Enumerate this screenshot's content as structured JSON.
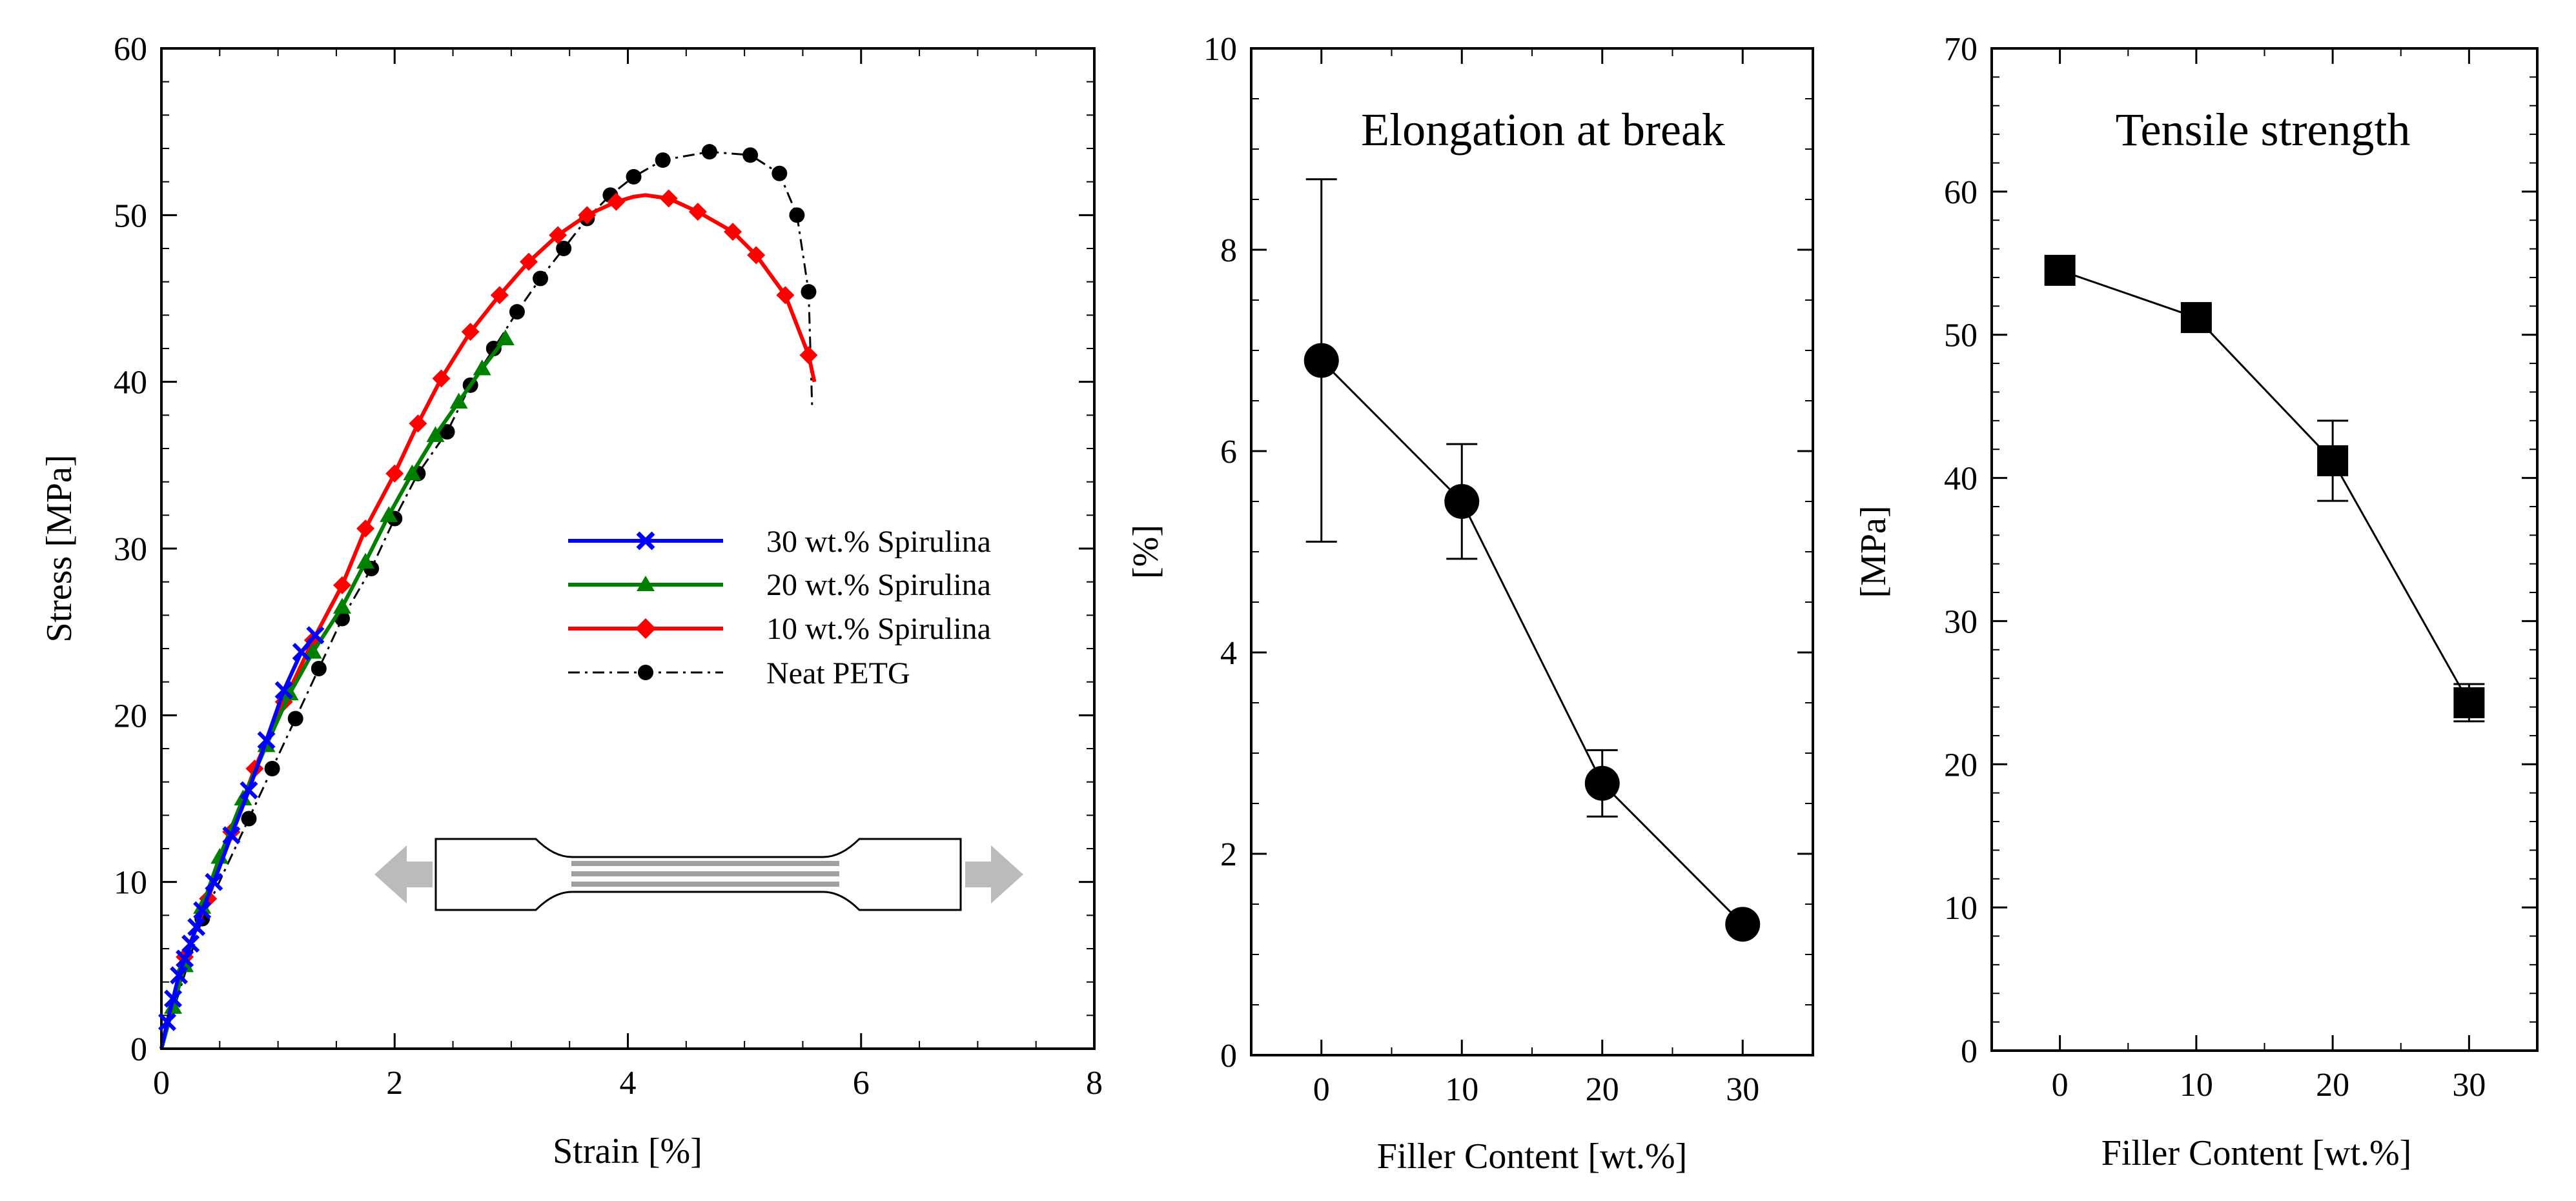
{
  "chart_data": [
    {
      "type": "line",
      "xlabel": "Strain [%]",
      "ylabel": "Stress [MPa]",
      "xlim": [
        0,
        8
      ],
      "ylim": [
        0,
        60
      ],
      "xticks": [
        0,
        2,
        4,
        6,
        8
      ],
      "yticks": [
        0,
        10,
        20,
        30,
        40,
        50,
        60
      ],
      "grid": false,
      "legend_position": "center-right",
      "series": [
        {
          "name": "30 wt.% Spirulina",
          "color": "#0000ff",
          "marker": "x",
          "line": "solid",
          "x": [
            0,
            0.05,
            0.1,
            0.15,
            0.2,
            0.25,
            0.3,
            0.35,
            0.45,
            0.6,
            0.75,
            0.9,
            1.05,
            1.2,
            1.32
          ],
          "y": [
            0,
            1.6,
            3.0,
            4.4,
            5.4,
            6.3,
            7.3,
            8.3,
            10.0,
            12.8,
            15.5,
            18.5,
            21.5,
            23.8,
            24.8
          ]
        },
        {
          "name": "20 wt.% Spirulina",
          "color": "#008000",
          "marker": "triangle",
          "line": "solid",
          "x": [
            0,
            0.1,
            0.2,
            0.35,
            0.5,
            0.7,
            0.9,
            1.1,
            1.3,
            1.55,
            1.75,
            1.95,
            2.15,
            2.35,
            2.55,
            2.75,
            2.95
          ],
          "y": [
            0,
            2.5,
            5.0,
            8.5,
            11.5,
            15.0,
            18.2,
            21.3,
            23.8,
            26.5,
            29.2,
            32.0,
            34.5,
            36.8,
            38.8,
            40.8,
            42.6
          ]
        },
        {
          "name": "10 wt.% Spirulina",
          "color": "#ff0000",
          "marker": "diamond",
          "line": "solid",
          "x": [
            0,
            0.2,
            0.4,
            0.6,
            0.8,
            1.05,
            1.3,
            1.55,
            1.75,
            2.0,
            2.2,
            2.4,
            2.65,
            2.9,
            3.15,
            3.4,
            3.65,
            3.9,
            4.05,
            4.15,
            4.35,
            4.6,
            4.9,
            5.1,
            5.35,
            5.55,
            5.6
          ],
          "y": [
            0,
            5.5,
            9.0,
            13.0,
            16.8,
            20.8,
            24.5,
            27.8,
            31.2,
            34.5,
            37.5,
            40.2,
            43.0,
            45.2,
            47.2,
            48.8,
            50.0,
            50.8,
            51.1,
            51.2,
            51.0,
            50.2,
            49.0,
            47.6,
            45.2,
            41.6,
            40.0
          ]
        },
        {
          "name": "Neat PETG",
          "color": "#000000",
          "marker": "circle",
          "line": "dash-dot",
          "x": [
            0,
            0.35,
            0.75,
            0.95,
            1.15,
            1.35,
            1.55,
            1.8,
            2.0,
            2.2,
            2.45,
            2.65,
            2.85,
            3.05,
            3.25,
            3.45,
            3.65,
            3.85,
            4.05,
            4.3,
            4.7,
            5.05,
            5.3,
            5.45,
            5.55,
            5.58
          ],
          "y": [
            0,
            7.8,
            13.8,
            16.8,
            19.8,
            22.8,
            25.8,
            28.8,
            31.8,
            34.5,
            37.0,
            39.8,
            42.0,
            44.2,
            46.2,
            48.0,
            49.8,
            51.2,
            52.3,
            53.3,
            53.8,
            53.6,
            52.5,
            50.0,
            45.4,
            38.5
          ]
        }
      ]
    },
    {
      "type": "line",
      "title": "Elongation at break",
      "xlabel": "Filler Content [wt.%]",
      "ylabel": "[%]",
      "xlim": [
        -5,
        35
      ],
      "ylim": [
        0,
        10
      ],
      "xticks": [
        0,
        10,
        20,
        30
      ],
      "yticks": [
        0,
        2,
        4,
        6,
        8,
        10
      ],
      "marker": "circle",
      "x": [
        0,
        10,
        20,
        30
      ],
      "y": [
        6.9,
        5.5,
        2.7,
        1.3
      ],
      "error": [
        1.8,
        0.57,
        0.33,
        0.0
      ]
    },
    {
      "type": "line",
      "title": "Tensile strength",
      "xlabel": "Filler Content [wt.%]",
      "ylabel": "[MPa]",
      "xlim": [
        -5,
        35
      ],
      "ylim": [
        0,
        70
      ],
      "xticks": [
        0,
        10,
        20,
        30
      ],
      "yticks": [
        0,
        10,
        20,
        30,
        40,
        50,
        60,
        70
      ],
      "marker": "square",
      "x": [
        0,
        10,
        20,
        30
      ],
      "y": [
        54.5,
        51.2,
        41.2,
        24.3
      ],
      "error": [
        0.0,
        0.0,
        2.8,
        1.3
      ]
    }
  ]
}
